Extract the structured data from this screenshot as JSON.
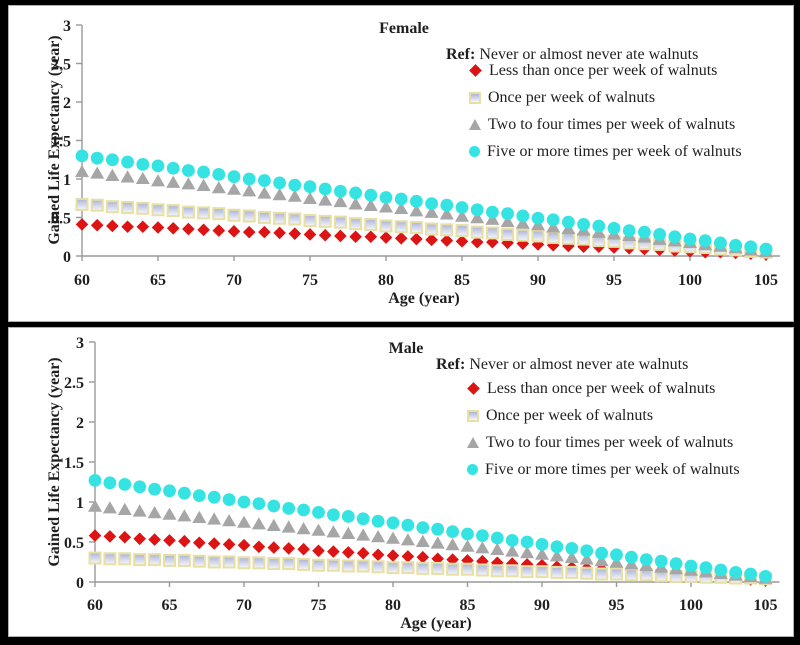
{
  "colors": {
    "background": "#000000",
    "panel": "#ffffff",
    "panel_border": "#b0b0b0",
    "axis": "#999999",
    "text": "#1f1f1f"
  },
  "chart_data": [
    {
      "type": "scatter",
      "title": "Female",
      "xlabel": "Age (year)",
      "ylabel": "Gained Life Expectancy (year)",
      "xlim": [
        60,
        105
      ],
      "ylim": [
        0,
        3
      ],
      "x_step": 1,
      "grid": false,
      "x_ticks": [
        60,
        65,
        70,
        75,
        80,
        85,
        90,
        95,
        100,
        105
      ],
      "y_ticks": [
        "3",
        "2.5",
        "2",
        "1.5",
        "1",
        "0.5",
        "0"
      ],
      "legend": {
        "position": "top-right",
        "ref_label": "Ref:",
        "ref_text": "Never or almost never ate walnuts"
      },
      "x": [
        60,
        61,
        62,
        63,
        64,
        65,
        66,
        67,
        68,
        69,
        70,
        71,
        72,
        73,
        74,
        75,
        76,
        77,
        78,
        79,
        80,
        81,
        82,
        83,
        84,
        85,
        86,
        87,
        88,
        89,
        90,
        91,
        92,
        93,
        94,
        95,
        96,
        97,
        98,
        99,
        100,
        101,
        102,
        103,
        104,
        105
      ],
      "series": [
        {
          "name": "Less than once per week of walnuts",
          "marker": "diamond",
          "color": "#dc1414",
          "values": [
            0.41,
            0.4,
            0.39,
            0.38,
            0.38,
            0.37,
            0.36,
            0.35,
            0.34,
            0.33,
            0.32,
            0.31,
            0.31,
            0.3,
            0.29,
            0.28,
            0.27,
            0.26,
            0.25,
            0.25,
            0.24,
            0.23,
            0.22,
            0.21,
            0.2,
            0.19,
            0.18,
            0.18,
            0.17,
            0.16,
            0.15,
            0.14,
            0.13,
            0.12,
            0.12,
            0.11,
            0.1,
            0.09,
            0.08,
            0.07,
            0.06,
            0.05,
            0.05,
            0.04,
            0.03,
            0.02
          ]
        },
        {
          "name": "Once per week of walnuts",
          "marker": "square",
          "color": "#c9d0e8",
          "border": "#e8dfa3",
          "fill_top": "#aab3d9",
          "fill_bottom": "#f6f8fe",
          "values": [
            0.67,
            0.66,
            0.64,
            0.63,
            0.62,
            0.6,
            0.59,
            0.57,
            0.56,
            0.55,
            0.53,
            0.52,
            0.5,
            0.49,
            0.48,
            0.46,
            0.45,
            0.44,
            0.42,
            0.41,
            0.39,
            0.38,
            0.37,
            0.35,
            0.34,
            0.33,
            0.31,
            0.3,
            0.28,
            0.27,
            0.26,
            0.24,
            0.23,
            0.22,
            0.2,
            0.19,
            0.17,
            0.16,
            0.15,
            0.13,
            0.12,
            0.11,
            0.09,
            0.08,
            0.06,
            0.05
          ]
        },
        {
          "name": "Two to four times per week of walnuts",
          "marker": "triangle",
          "color": "#a6a6a6",
          "values": [
            1.1,
            1.08,
            1.05,
            1.03,
            1.01,
            0.98,
            0.96,
            0.94,
            0.92,
            0.89,
            0.87,
            0.85,
            0.82,
            0.8,
            0.78,
            0.75,
            0.73,
            0.71,
            0.68,
            0.66,
            0.64,
            0.62,
            0.59,
            0.57,
            0.55,
            0.52,
            0.5,
            0.48,
            0.45,
            0.43,
            0.41,
            0.38,
            0.36,
            0.34,
            0.31,
            0.29,
            0.27,
            0.25,
            0.22,
            0.2,
            0.18,
            0.15,
            0.13,
            0.11,
            0.08,
            0.06
          ]
        },
        {
          "name": "Five or more times per week of walnuts",
          "marker": "circle",
          "color": "#35e3e3",
          "values": [
            1.3,
            1.27,
            1.25,
            1.22,
            1.19,
            1.17,
            1.14,
            1.11,
            1.09,
            1.06,
            1.03,
            1.0,
            0.98,
            0.95,
            0.92,
            0.9,
            0.87,
            0.84,
            0.82,
            0.79,
            0.76,
            0.74,
            0.71,
            0.68,
            0.66,
            0.63,
            0.6,
            0.57,
            0.55,
            0.52,
            0.49,
            0.47,
            0.44,
            0.41,
            0.39,
            0.36,
            0.33,
            0.31,
            0.28,
            0.25,
            0.22,
            0.2,
            0.17,
            0.14,
            0.12,
            0.09
          ]
        }
      ]
    },
    {
      "type": "scatter",
      "title": "Male",
      "xlabel": "Age (year)",
      "ylabel": "Gained Life Expectancy (year)",
      "xlim": [
        60,
        105
      ],
      "ylim": [
        0,
        3
      ],
      "x_step": 1,
      "grid": false,
      "x_ticks": [
        60,
        65,
        70,
        75,
        80,
        85,
        90,
        95,
        100,
        105
      ],
      "y_ticks": [
        "3",
        "2.5",
        "2",
        "1.5",
        "1",
        "0.5",
        "0"
      ],
      "legend": {
        "position": "top-right",
        "ref_label": "Ref:",
        "ref_text": "Never or almost never ate walnuts"
      },
      "x": [
        60,
        61,
        62,
        63,
        64,
        65,
        66,
        67,
        68,
        69,
        70,
        71,
        72,
        73,
        74,
        75,
        76,
        77,
        78,
        79,
        80,
        81,
        82,
        83,
        84,
        85,
        86,
        87,
        88,
        89,
        90,
        91,
        92,
        93,
        94,
        95,
        96,
        97,
        98,
        99,
        100,
        101,
        102,
        103,
        104,
        105
      ],
      "series": [
        {
          "name": "Less than once per week of walnuts",
          "marker": "diamond",
          "color": "#dc1414",
          "values": [
            0.58,
            0.57,
            0.56,
            0.54,
            0.53,
            0.52,
            0.51,
            0.49,
            0.48,
            0.47,
            0.46,
            0.44,
            0.43,
            0.42,
            0.41,
            0.39,
            0.38,
            0.37,
            0.36,
            0.34,
            0.33,
            0.32,
            0.31,
            0.29,
            0.28,
            0.27,
            0.26,
            0.24,
            0.23,
            0.22,
            0.21,
            0.19,
            0.18,
            0.17,
            0.16,
            0.14,
            0.13,
            0.12,
            0.11,
            0.1,
            0.08,
            0.07,
            0.06,
            0.05,
            0.03,
            0.02
          ]
        },
        {
          "name": "Once per week of walnuts",
          "marker": "square",
          "color": "#c9d0e8",
          "border": "#e8dfa3",
          "fill_top": "#aab3d9",
          "fill_bottom": "#f6f8fe",
          "values": [
            0.3,
            0.29,
            0.29,
            0.28,
            0.28,
            0.27,
            0.27,
            0.26,
            0.25,
            0.25,
            0.24,
            0.24,
            0.23,
            0.23,
            0.22,
            0.21,
            0.21,
            0.2,
            0.2,
            0.19,
            0.18,
            0.18,
            0.17,
            0.17,
            0.16,
            0.16,
            0.15,
            0.14,
            0.14,
            0.13,
            0.13,
            0.12,
            0.12,
            0.11,
            0.1,
            0.1,
            0.09,
            0.09,
            0.08,
            0.07,
            0.07,
            0.06,
            0.06,
            0.05,
            0.05,
            0.04
          ]
        },
        {
          "name": "Two to four times per week of walnuts",
          "marker": "triangle",
          "color": "#a6a6a6",
          "values": [
            0.95,
            0.93,
            0.91,
            0.89,
            0.87,
            0.85,
            0.83,
            0.81,
            0.79,
            0.77,
            0.75,
            0.73,
            0.71,
            0.69,
            0.67,
            0.65,
            0.63,
            0.61,
            0.59,
            0.57,
            0.55,
            0.53,
            0.51,
            0.49,
            0.47,
            0.45,
            0.43,
            0.41,
            0.39,
            0.37,
            0.35,
            0.33,
            0.31,
            0.29,
            0.27,
            0.25,
            0.23,
            0.21,
            0.19,
            0.17,
            0.15,
            0.13,
            0.11,
            0.09,
            0.07,
            0.05
          ]
        },
        {
          "name": "Five or more times per week of walnuts",
          "marker": "circle",
          "color": "#35e3e3",
          "values": [
            1.27,
            1.24,
            1.22,
            1.19,
            1.16,
            1.14,
            1.11,
            1.08,
            1.06,
            1.03,
            1.0,
            0.98,
            0.95,
            0.92,
            0.9,
            0.87,
            0.84,
            0.82,
            0.79,
            0.76,
            0.74,
            0.71,
            0.68,
            0.66,
            0.63,
            0.6,
            0.58,
            0.55,
            0.52,
            0.5,
            0.47,
            0.44,
            0.42,
            0.39,
            0.36,
            0.34,
            0.31,
            0.28,
            0.26,
            0.23,
            0.2,
            0.18,
            0.15,
            0.12,
            0.1,
            0.07
          ]
        }
      ]
    }
  ]
}
